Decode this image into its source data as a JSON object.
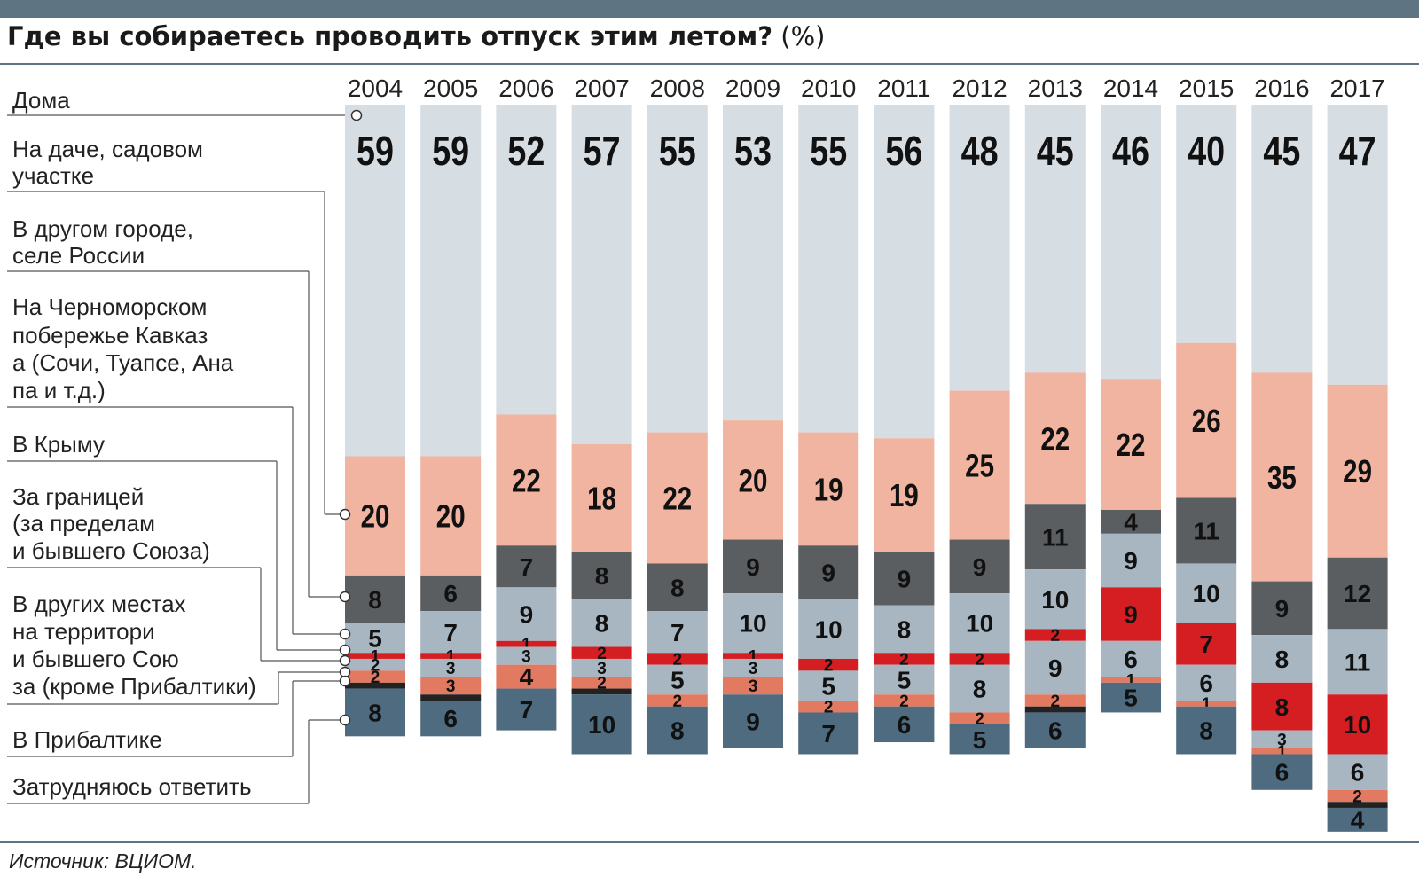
{
  "title": "Где вы собираетесь проводить отпуск этим летом?",
  "title_unit": "(%)",
  "source": "Источник: ВЦИОМ.",
  "chart_data": {
    "type": "bar",
    "stacked": true,
    "title": "Где вы собираетесь проводить отпуск этим летом? (%)",
    "categories": [
      "2004",
      "2005",
      "2006",
      "2007",
      "2008",
      "2009",
      "2010",
      "2011",
      "2012",
      "2013",
      "2014",
      "2015",
      "2016",
      "2017"
    ],
    "legend_position": "left",
    "series": [
      {
        "name": "Дома",
        "color": "#d6dde3",
        "values": [
          59,
          59,
          52,
          57,
          55,
          53,
          55,
          56,
          48,
          45,
          46,
          40,
          45,
          47
        ]
      },
      {
        "name": "На даче, садовом участке",
        "color": "#f0b4a1",
        "values": [
          20,
          20,
          22,
          18,
          22,
          20,
          19,
          19,
          25,
          22,
          22,
          26,
          35,
          29
        ]
      },
      {
        "name": "В другом городе, селе России",
        "color": "#5b5e61",
        "values": [
          8,
          6,
          7,
          8,
          8,
          9,
          9,
          9,
          9,
          11,
          4,
          11,
          9,
          12
        ]
      },
      {
        "name": "На Черноморском побережье Кавказа (Сочи, Туапсе, Анапа и т.д.)",
        "color": "#a7b6c1",
        "values": [
          5,
          7,
          9,
          8,
          7,
          10,
          10,
          8,
          10,
          10,
          9,
          10,
          8,
          11
        ]
      },
      {
        "name": "В Крыму",
        "color": "#d41e22",
        "values": [
          1,
          1,
          1,
          2,
          2,
          1,
          2,
          2,
          2,
          2,
          9,
          7,
          8,
          10
        ]
      },
      {
        "name": "За границей (за пределами бывшего Союза)",
        "color": "#a7b6c1",
        "values": [
          2,
          3,
          3,
          3,
          5,
          3,
          5,
          5,
          8,
          9,
          6,
          6,
          3,
          6
        ]
      },
      {
        "name": "В других местах на территории бывшего Союза (кроме Прибалтики)",
        "color": "#e27a62",
        "values": [
          2,
          3,
          4,
          2,
          2,
          3,
          2,
          2,
          2,
          2,
          1,
          1,
          1,
          2
        ]
      },
      {
        "name": "В Прибалтике",
        "color": "#222222",
        "values": [
          1,
          1,
          0,
          1,
          0,
          0,
          0,
          0,
          0,
          1,
          0,
          0,
          0,
          1
        ]
      },
      {
        "name": "Затрудняюсь ответить",
        "color": "#4f6b80",
        "values": [
          8,
          6,
          7,
          10,
          8,
          9,
          7,
          6,
          5,
          6,
          5,
          8,
          6,
          4
        ]
      }
    ],
    "grid": false
  }
}
